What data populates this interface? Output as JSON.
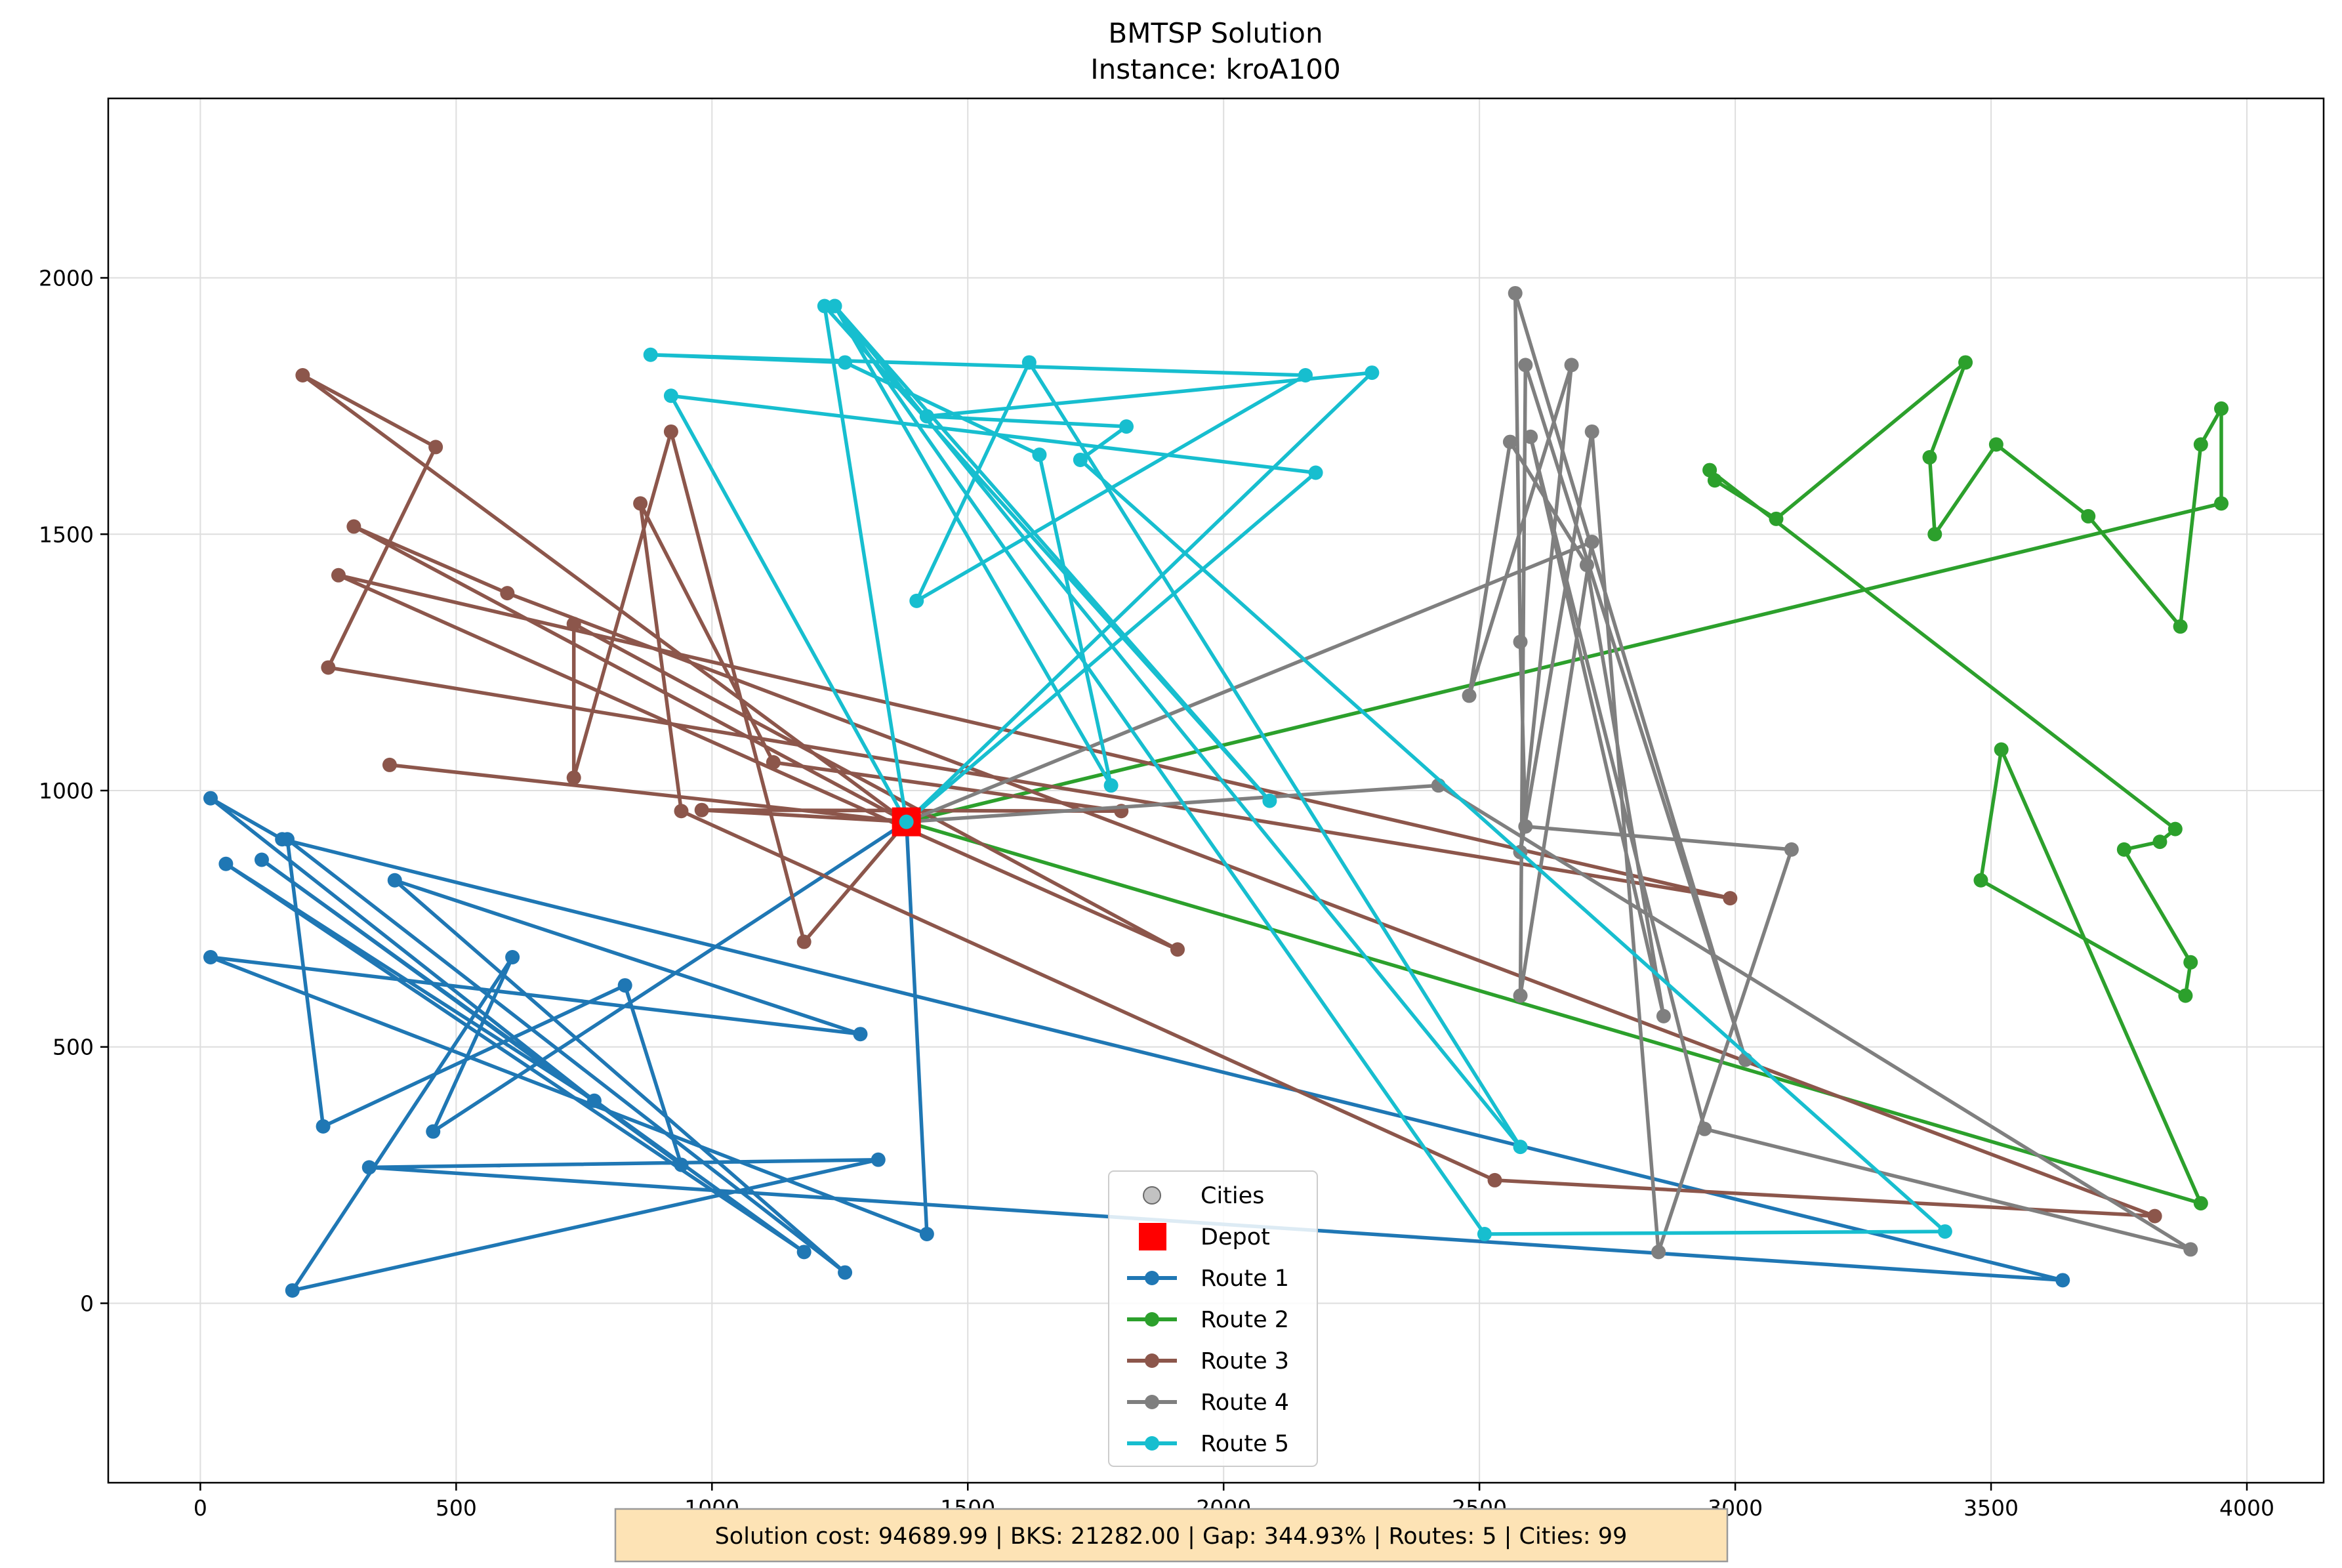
{
  "chart_data": {
    "type": "line",
    "title": "BMTSP Solution",
    "subtitle": "Instance: kroA100",
    "xlim": [
      -180,
      4150
    ],
    "ylim": [
      -350,
      2350
    ],
    "xticks": [
      0,
      500,
      1000,
      1500,
      2000,
      2500,
      3000,
      3500,
      4000
    ],
    "yticks": [
      0,
      500,
      1000,
      1500,
      2000
    ],
    "xtick_labels": [
      "0",
      "500",
      "1000",
      "1500",
      "2000",
      "2500",
      "3000",
      "3500",
      "4000"
    ],
    "ytick_labels": [
      "0",
      "500",
      "1000",
      "1500",
      "2000"
    ],
    "grid": true,
    "legend_placement": "bottom-center",
    "depot": {
      "name": "Depot",
      "x": 1380,
      "y": 939,
      "color": "#ff0000"
    },
    "cities_legend": {
      "name": "Cities",
      "color": "#9a9a9a"
    },
    "series": [
      {
        "name": "Route 1",
        "color": "#1f77b4",
        "points": [
          [
            1380,
            939
          ],
          [
            1420,
            135
          ],
          [
            20,
            675
          ],
          [
            1290,
            525
          ],
          [
            380,
            825
          ],
          [
            1260,
            60
          ],
          [
            170,
            905
          ],
          [
            240,
            345
          ],
          [
            830,
            620
          ],
          [
            940,
            270
          ],
          [
            120,
            865
          ],
          [
            1180,
            100
          ],
          [
            50,
            857
          ],
          [
            770,
            395
          ],
          [
            20,
            985
          ],
          [
            160,
            905
          ],
          [
            3640,
            45
          ],
          [
            330,
            265
          ],
          [
            1325,
            280
          ],
          [
            180,
            25
          ],
          [
            610,
            675
          ],
          [
            455,
            335
          ],
          [
            1380,
            939
          ]
        ]
      },
      {
        "name": "Route 2",
        "color": "#2ca02c",
        "points": [
          [
            1380,
            939
          ],
          [
            3910,
            195
          ],
          [
            3520,
            1080
          ],
          [
            3480,
            825
          ],
          [
            3880,
            600
          ],
          [
            3890,
            665
          ],
          [
            3760,
            885
          ],
          [
            3830,
            900
          ],
          [
            3860,
            925
          ],
          [
            2950,
            1625
          ],
          [
            2960,
            1605
          ],
          [
            3080,
            1530
          ],
          [
            3450,
            1835
          ],
          [
            3380,
            1650
          ],
          [
            3390,
            1500
          ],
          [
            3510,
            1675
          ],
          [
            3690,
            1535
          ],
          [
            3870,
            1320
          ],
          [
            3910,
            1675
          ],
          [
            3950,
            1745
          ],
          [
            3950,
            1560
          ],
          [
            1380,
            939
          ]
        ]
      },
      {
        "name": "Route 3",
        "color": "#8c564b",
        "points": [
          [
            1380,
            939
          ],
          [
            1180,
            705
          ],
          [
            920,
            1700
          ],
          [
            730,
            1025
          ],
          [
            730,
            1325
          ],
          [
            1910,
            690
          ],
          [
            270,
            1420
          ],
          [
            2990,
            790
          ],
          [
            250,
            1240
          ],
          [
            460,
            1670
          ],
          [
            200,
            1810
          ],
          [
            1380,
            939
          ],
          [
            980,
            962
          ],
          [
            1800,
            960
          ],
          [
            1120,
            1055
          ],
          [
            860,
            1560
          ],
          [
            940,
            960
          ],
          [
            2530,
            240
          ],
          [
            3820,
            170
          ],
          [
            600,
            1385
          ],
          [
            300,
            1515
          ],
          [
            1380,
            939
          ],
          [
            370,
            1050
          ],
          [
            1380,
            939
          ]
        ]
      },
      {
        "name": "Route 4",
        "color": "#7f7f7f",
        "points": [
          [
            1380,
            939
          ],
          [
            2720,
            1485
          ],
          [
            2580,
            600
          ],
          [
            2590,
            1830
          ],
          [
            3020,
            475
          ],
          [
            2570,
            1970
          ],
          [
            2580,
            1290
          ],
          [
            2590,
            930
          ],
          [
            3110,
            885
          ],
          [
            2850,
            100
          ],
          [
            2720,
            1700
          ],
          [
            2580,
            880
          ],
          [
            2680,
            1830
          ],
          [
            2480,
            1185
          ],
          [
            2560,
            1680
          ],
          [
            2710,
            1440
          ],
          [
            2860,
            560
          ],
          [
            2600,
            1690
          ],
          [
            2940,
            340
          ],
          [
            3890,
            105
          ],
          [
            2420,
            1010
          ],
          [
            1380,
            939
          ]
        ]
      },
      {
        "name": "Route 5",
        "color": "#17becf",
        "points": [
          [
            1380,
            939
          ],
          [
            1220,
            1945
          ],
          [
            2090,
            980
          ],
          [
            1240,
            1945
          ],
          [
            1780,
            1010
          ],
          [
            1640,
            1655
          ],
          [
            1260,
            1835
          ],
          [
            880,
            1850
          ],
          [
            2160,
            1810
          ],
          [
            1400,
            1370
          ],
          [
            1620,
            1835
          ],
          [
            2580,
            305
          ],
          [
            1240,
            1945
          ],
          [
            2510,
            135
          ],
          [
            3410,
            140
          ],
          [
            1720,
            1645
          ],
          [
            1810,
            1710
          ],
          [
            1420,
            1730
          ],
          [
            2290,
            1815
          ],
          [
            1380,
            939
          ],
          [
            2180,
            1620
          ],
          [
            920,
            1770
          ],
          [
            1380,
            939
          ]
        ]
      }
    ],
    "legend": [
      "Cities",
      "Depot",
      "Route 1",
      "Route 2",
      "Route 3",
      "Route 4",
      "Route 5"
    ],
    "annotation": "Solution cost: 94689.99 | BKS: 21282.00 | Gap: 344.93% | Routes: 5 | Cities: 99"
  }
}
